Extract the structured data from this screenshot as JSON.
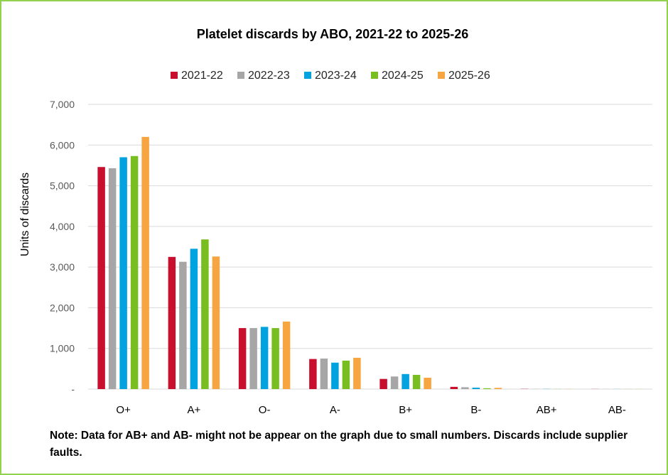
{
  "chart_data": {
    "type": "bar",
    "title": "Platelet discards by ABO, 2021-22 to 2025-26",
    "ylabel": "Units of discards",
    "xlabel": "",
    "categories": [
      "O+",
      "A+",
      "O-",
      "A-",
      "B+",
      "B-",
      "AB+",
      "AB-"
    ],
    "ylim": [
      0,
      7000
    ],
    "yticks": [
      {
        "value": 0,
        "label": "-"
      },
      {
        "value": 1000,
        "label": "1,000"
      },
      {
        "value": 2000,
        "label": "2,000"
      },
      {
        "value": 3000,
        "label": "3,000"
      },
      {
        "value": 4000,
        "label": "4,000"
      },
      {
        "value": 5000,
        "label": "5,000"
      },
      {
        "value": 6000,
        "label": "6,000"
      },
      {
        "value": 7000,
        "label": "7,000"
      }
    ],
    "grid": true,
    "legend_position": "top",
    "series": [
      {
        "name": "2021-22",
        "color": "#c8102e",
        "values": [
          5460,
          3250,
          1500,
          740,
          250,
          55,
          5,
          3
        ]
      },
      {
        "name": "2022-23",
        "color": "#a6a6a6",
        "values": [
          5430,
          3130,
          1500,
          750,
          310,
          45,
          4,
          2
        ]
      },
      {
        "name": "2023-24",
        "color": "#00a3e0",
        "values": [
          5700,
          3450,
          1530,
          650,
          370,
          35,
          4,
          2
        ]
      },
      {
        "name": "2024-25",
        "color": "#78be20",
        "values": [
          5730,
          3680,
          1500,
          700,
          350,
          20,
          3,
          2
        ]
      },
      {
        "name": "2025-26",
        "color": "#f7a541",
        "values": [
          6200,
          3260,
          1660,
          770,
          280,
          30,
          3,
          2
        ]
      }
    ]
  },
  "note": "Note: Data for AB+ and AB- might not be appear on the graph due to small numbers. Discards include supplier faults."
}
